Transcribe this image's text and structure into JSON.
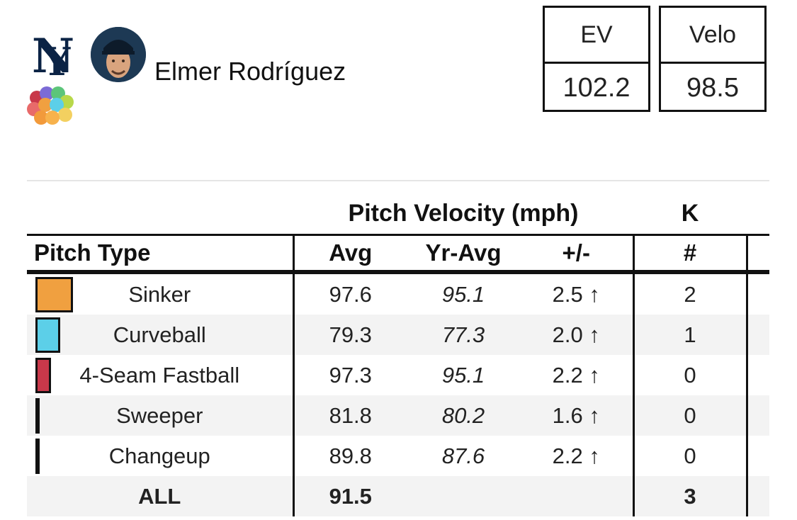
{
  "team": {
    "logo_icon": "yankees-logo-icon"
  },
  "player": {
    "name": "Elmer Rodríguez",
    "avatar_icon": "player-headshot-icon",
    "badge_icon": "pitch-mix-dots-icon"
  },
  "stats": {
    "ev": {
      "label": "EV",
      "value": "102.2"
    },
    "velo": {
      "label": "Velo",
      "value": "98.5"
    }
  },
  "table": {
    "group_velocity": "Pitch Velocity (mph)",
    "group_k": "K",
    "headers": {
      "pitch_type": "Pitch Type",
      "avg": "Avg",
      "yr_avg": "Yr-Avg",
      "diff": "+/-",
      "k_count": "#"
    },
    "rows": [
      {
        "name": "Sinker",
        "avg": "97.6",
        "yr_avg": "95.1",
        "diff": "2.5 ↑",
        "k": "2",
        "color": "#f0a040",
        "usage": 0.41
      },
      {
        "name": "Curveball",
        "avg": "79.3",
        "yr_avg": "77.3",
        "diff": "2.0 ↑",
        "k": "1",
        "color": "#5ccfe8",
        "usage": 0.27
      },
      {
        "name": "4-Seam Fastball",
        "avg": "97.3",
        "yr_avg": "95.1",
        "diff": "2.2 ↑",
        "k": "0",
        "color": "#c8384a",
        "usage": 0.17
      },
      {
        "name": "Sweeper",
        "avg": "81.8",
        "yr_avg": "80.2",
        "diff": "1.6 ↑",
        "k": "0",
        "color": "#222222",
        "usage": 0.02
      },
      {
        "name": "Changeup",
        "avg": "89.8",
        "yr_avg": "87.6",
        "diff": "2.2 ↑",
        "k": "0",
        "color": "#222222",
        "usage": 0.02
      }
    ],
    "total": {
      "label": "ALL",
      "avg": "91.5",
      "k": "3"
    }
  }
}
